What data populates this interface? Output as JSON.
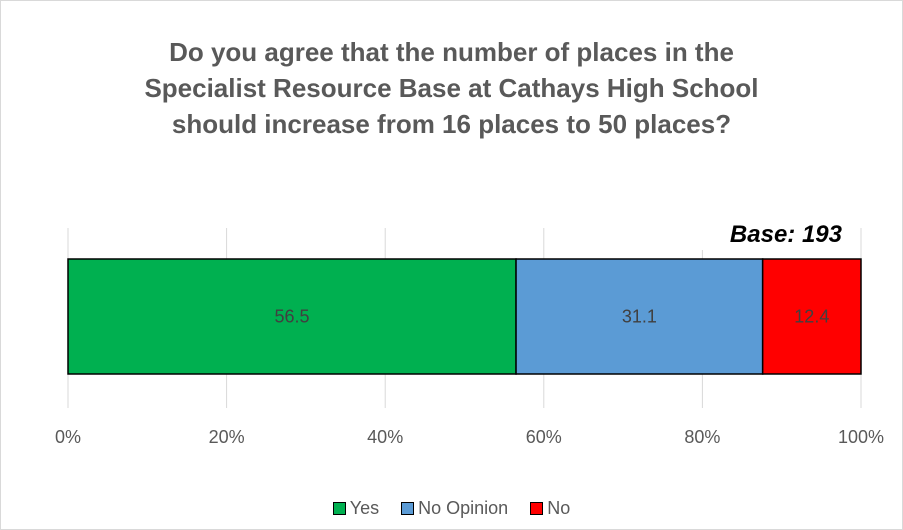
{
  "chart_data": {
    "type": "bar",
    "orientation": "horizontal",
    "stacked": true,
    "title": "Do you agree that the number of places in the Specialist Resource Base at Cathays High School should increase from 16 places to 50 places?",
    "title_lines": [
      "Do you agree that the number of places in the",
      "Specialist Resource Base at Cathays High School",
      "should increase from 16 places to 50 places?"
    ],
    "annotation": "Base: 193",
    "categories": [
      ""
    ],
    "series": [
      {
        "name": "Yes",
        "values": [
          56.5
        ],
        "color": "#00b050",
        "label": "56.5"
      },
      {
        "name": "No Opinion",
        "values": [
          31.1
        ],
        "color": "#5b9bd5",
        "label": "31.1"
      },
      {
        "name": "No",
        "values": [
          12.4
        ],
        "color": "#ff0000",
        "label": "12.4"
      }
    ],
    "xlim": [
      0,
      100
    ],
    "xticks": [
      "0%",
      "20%",
      "40%",
      "60%",
      "80%",
      "100%"
    ],
    "xtick_values": [
      0,
      20,
      40,
      60,
      80,
      100
    ],
    "grid": true,
    "legend_position": "bottom"
  }
}
